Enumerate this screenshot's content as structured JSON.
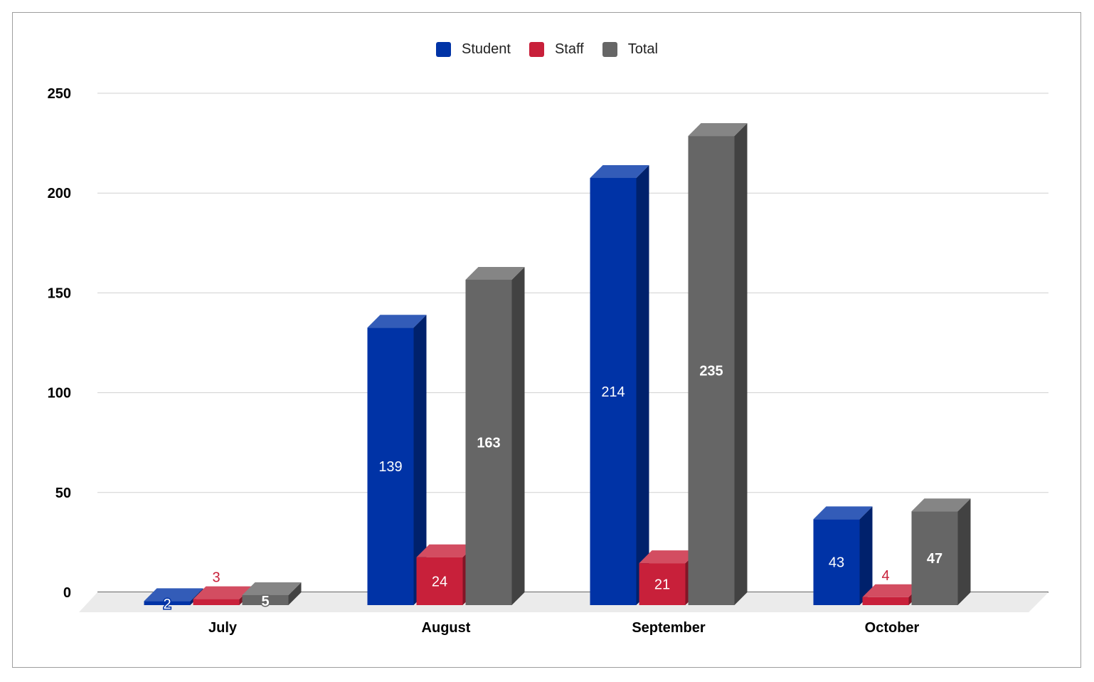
{
  "chart_data": {
    "type": "bar",
    "style": "3d",
    "categories": [
      "July",
      "August",
      "September",
      "October"
    ],
    "series": [
      {
        "name": "Student",
        "color": "#0033a6",
        "values": [
          2,
          139,
          214,
          43
        ],
        "labels": [
          "2",
          "139",
          "214",
          "43"
        ]
      },
      {
        "name": "Staff",
        "color": "#c8203a",
        "values": [
          3,
          24,
          21,
          4
        ],
        "labels": [
          "3",
          "24",
          "21",
          "4"
        ]
      },
      {
        "name": "Total",
        "color": "#666666",
        "values": [
          5,
          163,
          235,
          47
        ],
        "labels": [
          "5",
          "163",
          "235",
          "47"
        ]
      }
    ],
    "yticks": [
      "0",
      "50",
      "100",
      "150",
      "200",
      "250"
    ],
    "ylim": [
      0,
      250
    ],
    "grid": true,
    "legend_position": "top-center"
  }
}
